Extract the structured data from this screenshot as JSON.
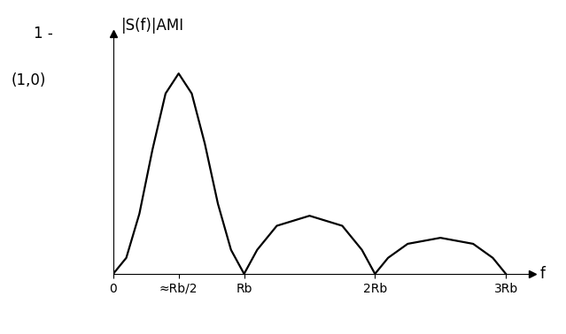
{
  "chart_data": {
    "type": "line",
    "y_label": "|S(f)|AMI",
    "x_label": "f",
    "annotations": [
      "1 -",
      "(1,0)"
    ],
    "x": [
      0,
      0.1,
      0.2,
      0.3,
      0.4,
      0.5,
      0.6,
      0.7,
      0.8,
      0.9,
      1.0,
      1.1,
      1.25,
      1.5,
      1.75,
      1.9,
      2.0,
      2.1,
      2.25,
      2.5,
      2.75,
      2.9,
      3.0
    ],
    "values": [
      0,
      0.08,
      0.3,
      0.62,
      0.9,
      1.0,
      0.9,
      0.65,
      0.35,
      0.12,
      0,
      0.12,
      0.24,
      0.29,
      0.24,
      0.12,
      0,
      0.08,
      0.15,
      0.18,
      0.15,
      0.08,
      0
    ],
    "color": "#000000",
    "xlim": [
      0,
      3.2
    ],
    "ylim": [
      0,
      1.2
    ],
    "xticks": [
      0,
      {
        "value": 0.5,
        "label": "≈Rb/2"
      },
      {
        "value": 1,
        "label": "Rb"
      },
      {
        "value": 2,
        "label": "2Rb"
      },
      {
        "value": 3,
        "label": "3Rb"
      }
    ],
    "tick_labels": "x"
  }
}
